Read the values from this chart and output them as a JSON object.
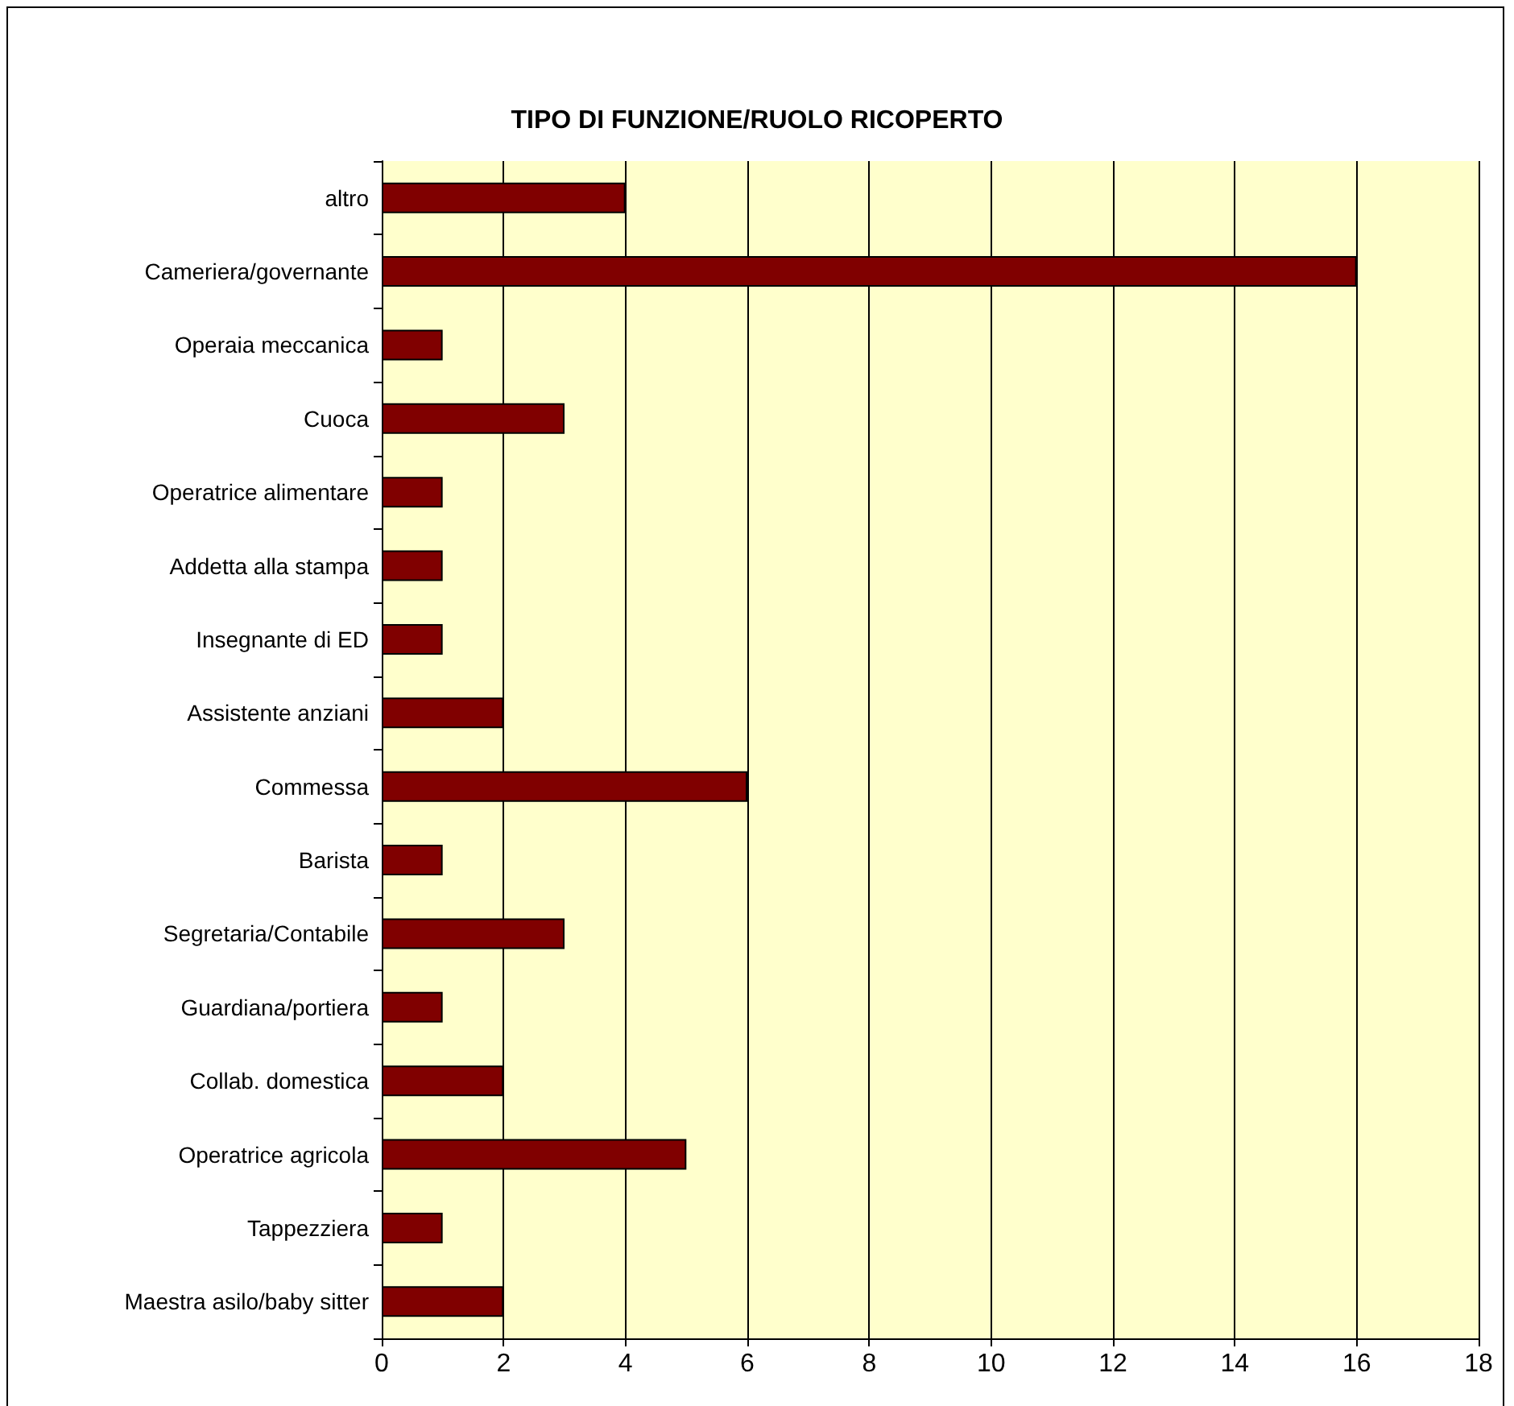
{
  "chart_data": {
    "type": "bar",
    "orientation": "horizontal",
    "title": "TIPO DI FUNZIONE/RUOLO RICOPERTO",
    "categories": [
      "altro",
      "Cameriera/governante",
      "Operaia meccanica",
      "Cuoca",
      "Operatrice alimentare",
      "Addetta alla stampa",
      "Insegnante di ED",
      "Assistente anziani",
      "Commessa",
      "Barista",
      "Segretaria/Contabile",
      "Guardiana/portiera",
      "Collab. domestica",
      "Operatrice agricola",
      "Tappezziera",
      "Maestra asilo/baby sitter"
    ],
    "values": [
      4,
      16,
      1,
      3,
      1,
      1,
      1,
      2,
      6,
      1,
      3,
      1,
      2,
      5,
      1,
      2
    ],
    "color": "#800000",
    "xlim": [
      0,
      18
    ],
    "xticks": [
      0,
      2,
      4,
      6,
      8,
      10,
      12,
      14,
      16,
      18
    ],
    "grid": "x"
  }
}
